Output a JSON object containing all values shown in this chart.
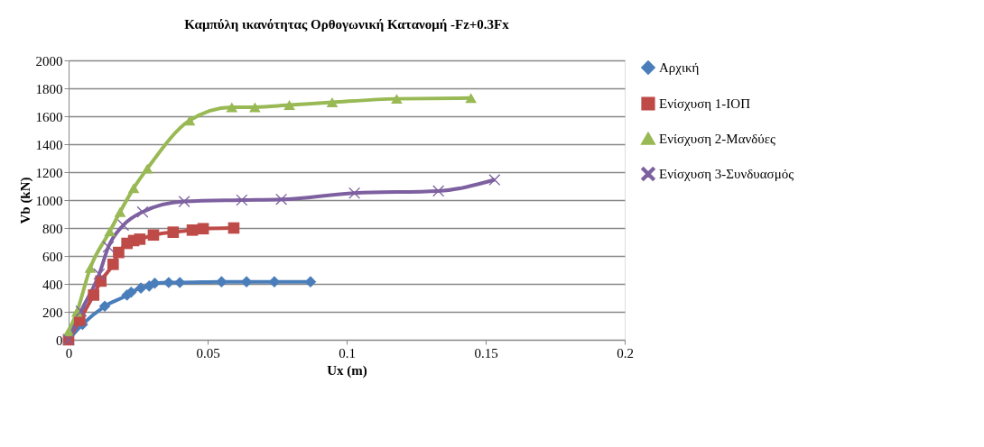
{
  "chart_data": {
    "type": "line",
    "title": "Καμπύλη ικανότητας Ορθογωνική Κατανομή -Fz+0.3Fx",
    "xlabel": "Ux (m)",
    "ylabel": "Vb  (kN)",
    "xlim": [
      0,
      0.2
    ],
    "xticks": [
      0,
      0.05,
      0.1,
      0.15,
      0.2
    ],
    "ylim": [
      0,
      2000
    ],
    "yticks": [
      0,
      200,
      400,
      600,
      800,
      1000,
      1200,
      1400,
      1600,
      1800,
      2000
    ],
    "grid": "y",
    "legend": "right",
    "series": [
      {
        "name": "Αρχική",
        "color": "#4a7ebb",
        "marker": "diamond",
        "x": [
          0,
          0.005,
          0.013,
          0.021,
          0.0225,
          0.026,
          0.029,
          0.031,
          0.036,
          0.04,
          0.055,
          0.064,
          0.074,
          0.087
        ],
        "values": [
          0,
          110,
          240,
          320,
          340,
          370,
          385,
          405,
          410,
          410,
          415,
          415,
          415,
          415
        ]
      },
      {
        "name": "Ενίσχυση 1-ΙΟΠ",
        "color": "#be4b48",
        "marker": "square",
        "x": [
          0,
          0.004,
          0.009,
          0.0116,
          0.016,
          0.018,
          0.021,
          0.0234,
          0.0256,
          0.0305,
          0.0376,
          0.0445,
          0.0484,
          0.0594
        ],
        "values": [
          0,
          140,
          320,
          420,
          540,
          625,
          690,
          710,
          720,
          750,
          770,
          785,
          795,
          800
        ]
      },
      {
        "name": "Ενίσχυση 2-Μανδύες",
        "color": "#98b954",
        "marker": "triangle",
        "x": [
          0,
          0.003,
          0.0078,
          0.0148,
          0.0185,
          0.0234,
          0.0283,
          0.0435,
          0.0587,
          0.067,
          0.0794,
          0.0948,
          0.118,
          0.1447
        ],
        "values": [
          60,
          200,
          515,
          775,
          915,
          1085,
          1225,
          1570,
          1665,
          1665,
          1680,
          1700,
          1725,
          1730
        ]
      },
      {
        "name": "Ενίσχυση 3-Συνδυασμός",
        "color": "#7d60a0",
        "marker": "cross",
        "x": [
          0,
          0.0045,
          0.011,
          0.0143,
          0.0197,
          0.0266,
          0.0416,
          0.0623,
          0.0765,
          0.1028,
          0.133,
          0.1532
        ],
        "values": [
          0,
          205,
          470,
          665,
          820,
          915,
          990,
          1000,
          1005,
          1050,
          1065,
          1145
        ]
      }
    ]
  }
}
